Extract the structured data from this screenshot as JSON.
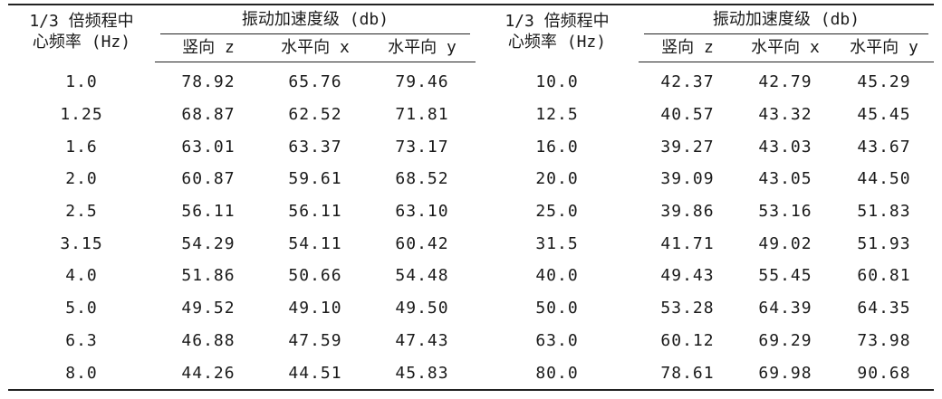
{
  "table": {
    "headers": {
      "freq_line1": "1/3 倍频程中",
      "freq_line2": "心频率 (Hz)",
      "group_label": "振动加速度级 (db)",
      "vertical_z": "竖向 z",
      "horizontal_x": "水平向 x",
      "horizontal_y": "水平向 y"
    },
    "rows": [
      {
        "f1": "1.0",
        "z1": "78.92",
        "x1": "65.76",
        "y1": "79.46",
        "f2": "10.0",
        "z2": "42.37",
        "x2": "42.79",
        "y2": "45.29"
      },
      {
        "f1": "1.25",
        "z1": "68.87",
        "x1": "62.52",
        "y1": "71.81",
        "f2": "12.5",
        "z2": "40.57",
        "x2": "43.32",
        "y2": "45.45"
      },
      {
        "f1": "1.6",
        "z1": "63.01",
        "x1": "63.37",
        "y1": "73.17",
        "f2": "16.0",
        "z2": "39.27",
        "x2": "43.03",
        "y2": "43.67"
      },
      {
        "f1": "2.0",
        "z1": "60.87",
        "x1": "59.61",
        "y1": "68.52",
        "f2": "20.0",
        "z2": "39.09",
        "x2": "43.05",
        "y2": "44.50"
      },
      {
        "f1": "2.5",
        "z1": "56.11",
        "x1": "56.11",
        "y1": "63.10",
        "f2": "25.0",
        "z2": "39.86",
        "x2": "53.16",
        "y2": "51.83"
      },
      {
        "f1": "3.15",
        "z1": "54.29",
        "x1": "54.11",
        "y1": "60.42",
        "f2": "31.5",
        "z2": "41.71",
        "x2": "49.02",
        "y2": "51.93"
      },
      {
        "f1": "4.0",
        "z1": "51.86",
        "x1": "50.66",
        "y1": "54.48",
        "f2": "40.0",
        "z2": "49.43",
        "x2": "55.45",
        "y2": "60.81"
      },
      {
        "f1": "5.0",
        "z1": "49.52",
        "x1": "49.10",
        "y1": "49.50",
        "f2": "50.0",
        "z2": "53.28",
        "x2": "64.39",
        "y2": "64.35"
      },
      {
        "f1": "6.3",
        "z1": "46.88",
        "x1": "47.59",
        "y1": "47.43",
        "f2": "63.0",
        "z2": "60.12",
        "x2": "69.29",
        "y2": "73.98"
      },
      {
        "f1": "8.0",
        "z1": "44.26",
        "x1": "44.51",
        "y1": "45.83",
        "f2": "80.0",
        "z2": "78.61",
        "x2": "69.98",
        "y2": "90.68"
      }
    ]
  }
}
